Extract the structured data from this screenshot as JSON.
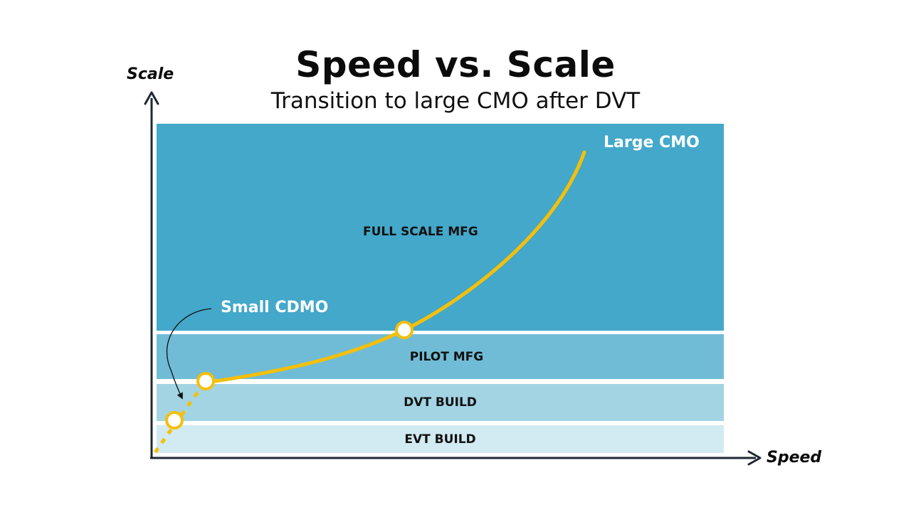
{
  "header": {
    "title": "Speed vs. Scale",
    "subtitle": "Transition to large CMO after DVT"
  },
  "axes": {
    "y_label": "Scale",
    "x_label": "Speed"
  },
  "bands": {
    "full_scale": "FULL SCALE MFG",
    "pilot": "PILOT MFG",
    "dvt": "DVT BUILD",
    "evt": "EVT BUILD"
  },
  "callouts": {
    "large_cmo": "Large CMO",
    "small_cdmo": "Small CDMO"
  },
  "colors": {
    "curve": "#f5bf0a",
    "axis": "#1f2833",
    "full_scale": "#43a8c9",
    "pilot": "#70bcd6",
    "dvt": "#a2d4e4",
    "evt": "#d2eaf2"
  }
}
